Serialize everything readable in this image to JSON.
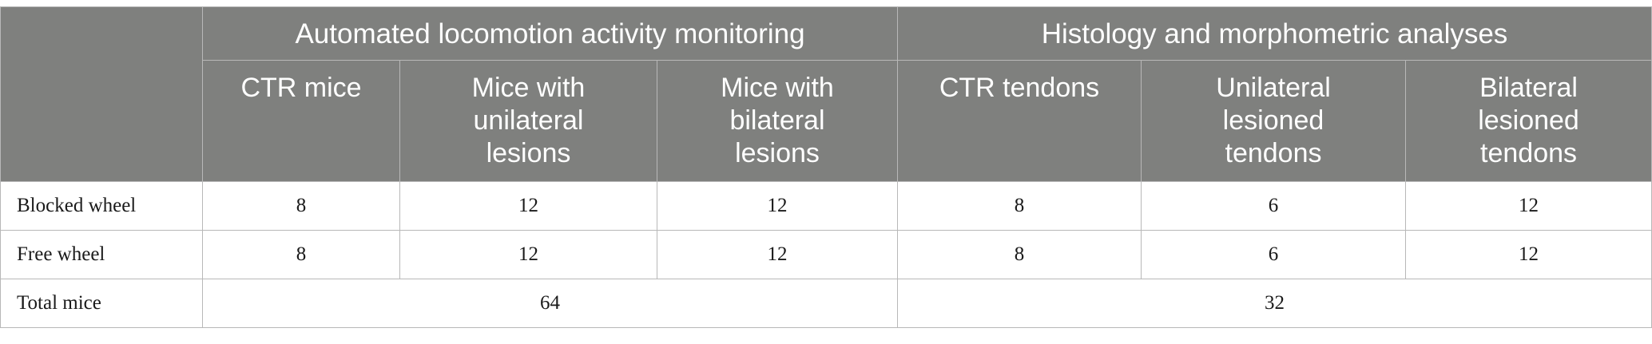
{
  "table": {
    "group_headers": [
      {
        "label": "Automated locomotion activity monitoring"
      },
      {
        "label": "Histology and morphometric analyses"
      }
    ],
    "column_headers": [
      [
        "CTR mice"
      ],
      [
        "Mice with",
        "unilateral",
        "lesions"
      ],
      [
        "Mice with",
        "bilateral",
        "lesions"
      ],
      [
        "CTR tendons"
      ],
      [
        "Unilateral",
        "lesioned",
        "tendons"
      ],
      [
        "Bilateral",
        "lesioned",
        "tendons"
      ]
    ],
    "rows": [
      {
        "label": "Blocked wheel",
        "values": [
          "8",
          "12",
          "12",
          "8",
          "6",
          "12"
        ]
      },
      {
        "label": "Free wheel",
        "values": [
          "8",
          "12",
          "12",
          "8",
          "6",
          "12"
        ]
      }
    ],
    "total_row": {
      "label": "Total mice",
      "values": [
        "64",
        "32"
      ]
    }
  },
  "colors": {
    "header_bg": "#7f807e",
    "header_text": "#ffffff",
    "grid": "#b8b8b8"
  }
}
